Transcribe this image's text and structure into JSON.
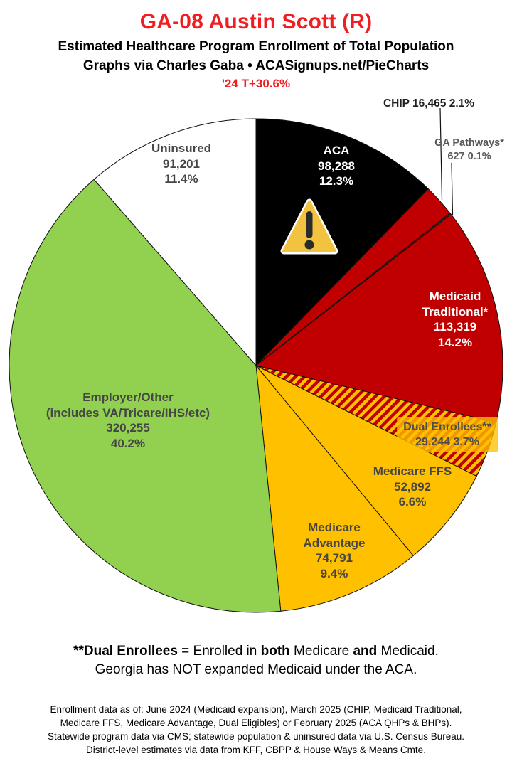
{
  "header": {
    "title": "GA-08 Austin Scott (R)",
    "title_color": "#f01e23",
    "subtitle1": "Estimated Healthcare Program Enrollment of Total Population",
    "subtitle2": "Graphs via Charles Gaba   •   ACASignups.net/PieCharts",
    "change_note": "'24 T+30.6%",
    "change_note_color": "#f01e23"
  },
  "chart_data": {
    "type": "pie",
    "title": "Estimated Healthcare Program Enrollment of Total Population",
    "direction": "clockwise",
    "start_angle_deg": 0,
    "outline_color": "#111111",
    "slices": [
      {
        "id": "aca",
        "name": "ACA",
        "value": 98288,
        "pct_value": 12.3,
        "color": "#000000",
        "hatch": false,
        "label_lines": [
          "ACA",
          "98,288",
          "12.3%"
        ]
      },
      {
        "id": "chip",
        "name": "CHIP",
        "value": 16465,
        "pct_value": 2.1,
        "color": "#c00000",
        "hatch": false,
        "callout": "CHIP 16,465 2.1%"
      },
      {
        "id": "ga-pathways",
        "name": "GA Pathways*",
        "value": 627,
        "pct_value": 0.1,
        "color": "#900000",
        "hatch": false,
        "label_lines": [
          "GA Pathways*",
          "627 0.1%"
        ]
      },
      {
        "id": "medicaid-traditional",
        "name": "Medicaid Traditional*",
        "value": 113319,
        "pct_value": 14.2,
        "color": "#c00000",
        "hatch": false,
        "label_lines": [
          "Medicaid",
          "Traditional*",
          "113,319",
          "14.2%"
        ]
      },
      {
        "id": "dual-enrollees",
        "name": "Dual Enrollees**",
        "value": 29244,
        "pct_value": 3.7,
        "color": "#c00000",
        "hatch": true,
        "hatch_colors": [
          "#c00000",
          "#ffc000"
        ],
        "label_lines": [
          "Dual Enrollees**",
          "29,244 3.7%"
        ]
      },
      {
        "id": "medicare-ffs",
        "name": "Medicare FFS",
        "value": 52892,
        "pct_value": 6.6,
        "color": "#ffc000",
        "hatch": false,
        "label_lines": [
          "Medicare FFS",
          "52,892",
          "6.6%"
        ]
      },
      {
        "id": "medicare-advantage",
        "name": "Medicare Advantage",
        "value": 74791,
        "pct_value": 9.4,
        "color": "#ffc000",
        "hatch": false,
        "label_lines": [
          "Medicare",
          "Advantage",
          "74,791",
          "9.4%"
        ]
      },
      {
        "id": "employer-other",
        "name": "Employer/Other (includes VA/Tricare/IHS/etc)",
        "value": 320255,
        "pct_value": 40.2,
        "color": "#92d050",
        "hatch": false,
        "label_lines": [
          "Employer/Other",
          "(includes VA/Tricare/IHS/etc)",
          "320,255",
          "40.2%"
        ]
      },
      {
        "id": "uninsured",
        "name": "Uninsured",
        "value": 91201,
        "pct_value": 11.4,
        "color": "#ffffff",
        "hatch": false,
        "label_lines": [
          "Uninsured",
          "91,201",
          "11.4%"
        ]
      }
    ]
  },
  "warning_icon": {
    "meaning": "warning",
    "fill": "#F2C341",
    "glyph_color": "#2b2b2b",
    "border_color": "#ffffff"
  },
  "footnote": {
    "dual_bold": "**Dual Enrollees",
    "mid1": " = Enrolled in ",
    "bold1": "both",
    "mid2": " Medicare ",
    "bold2": "and",
    "end1": " Medicaid.",
    "line2": "Georgia has NOT expanded Medicaid under the ACA."
  },
  "fine_print": {
    "line1": "Enrollment data as of: June 2024 (Medicaid expansion), March 2025 (CHIP, Medicaid Traditional,",
    "line2": "Medicare FFS, Medicare Advantage, Dual Eligibles) or February 2025 (ACA QHPs & BHPs).",
    "line3": "Statewide program data via CMS; statewide population & uninsured data via U.S. Census Bureau.",
    "line4": "District-level estimates via data from KFF, CBPP & House Ways & Means Cmte."
  }
}
